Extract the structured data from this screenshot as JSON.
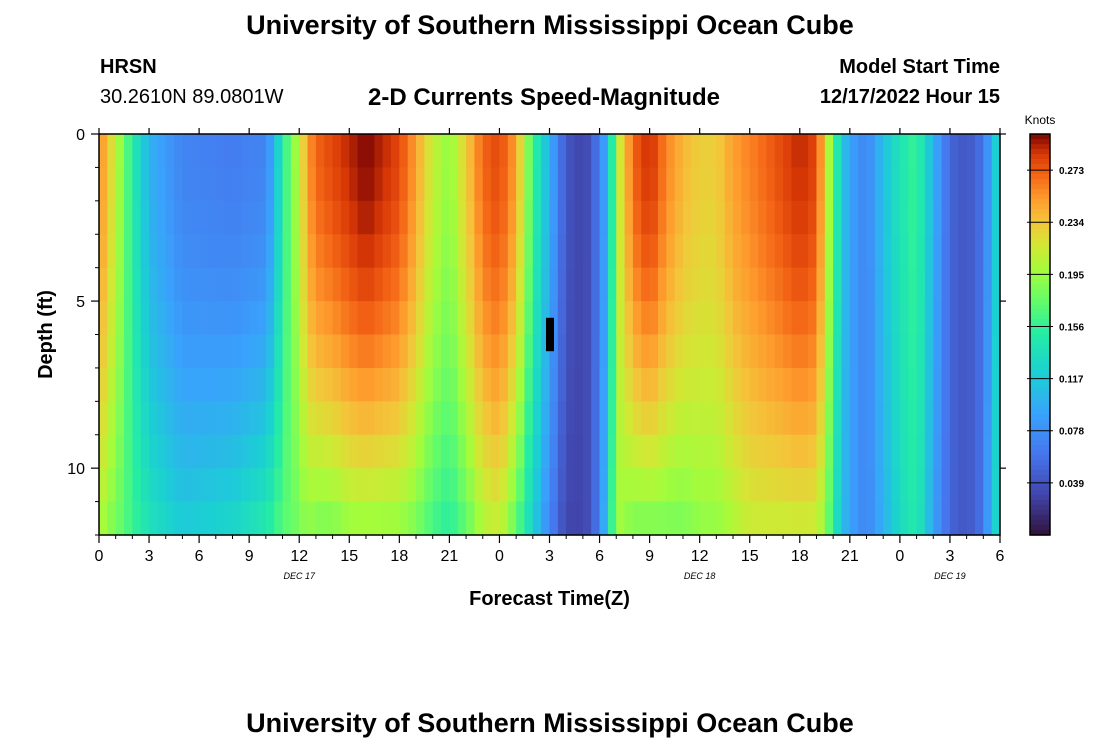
{
  "header": {
    "title": "University of Southern Mississippi Ocean Cube",
    "station": "HRSN",
    "coordinates": "30.2610N  89.0801W",
    "subtitle": "2-D Currents Speed-Magnitude",
    "model_start_label": "Model Start Time",
    "model_start_value": "12/17/2022 Hour 15"
  },
  "footer": {
    "title": "University of Southern Mississippi Ocean Cube"
  },
  "chart_data": {
    "type": "heatmap",
    "title": "2-D Currents Speed-Magnitude",
    "xlabel": "Forecast Time(Z)",
    "ylabel": "Depth (ft)",
    "x_range_hours": [
      0,
      54
    ],
    "y_range_ft": [
      0,
      12
    ],
    "x_tick_labels": [
      "0",
      "3",
      "6",
      "9",
      "12",
      "15",
      "18",
      "21",
      "0",
      "3",
      "6",
      "9",
      "12",
      "15",
      "18",
      "21",
      "0",
      "3",
      "6"
    ],
    "day_labels": [
      {
        "hour": 12,
        "label": "DEC 17"
      },
      {
        "hour": 36,
        "label": "DEC 18"
      },
      {
        "hour": 51,
        "label": "DEC 19"
      }
    ],
    "y_ticks": [
      0,
      5,
      10
    ],
    "colorbar": {
      "label": "Knots",
      "min": 0.0,
      "max": 0.3,
      "tick_labels": [
        "0.039",
        "0.078",
        "0.117",
        "0.156",
        "0.195",
        "0.234",
        "0.273"
      ],
      "tick_values": [
        0.039,
        0.078,
        0.117,
        0.156,
        0.195,
        0.234,
        0.273
      ]
    },
    "time_profile_hours": [
      0,
      1,
      2,
      3,
      5,
      8,
      10,
      10.5,
      11,
      12,
      12.5,
      13,
      14,
      15,
      16,
      17,
      18,
      19,
      20,
      21,
      22,
      23,
      24,
      25,
      26,
      27,
      28,
      29,
      29.5,
      30,
      30.5,
      31,
      32,
      33,
      34,
      35,
      36,
      37,
      38,
      39,
      40,
      41,
      42,
      43,
      43.5,
      44,
      44.5,
      45,
      46,
      47,
      48,
      49,
      50,
      51,
      52,
      53,
      53.5,
      54
    ],
    "surface_speed_knots": [
      0.26,
      0.21,
      0.15,
      0.1,
      0.07,
      0.065,
      0.07,
      0.1,
      0.15,
      0.21,
      0.25,
      0.27,
      0.28,
      0.29,
      0.3,
      0.29,
      0.28,
      0.25,
      0.21,
      0.19,
      0.23,
      0.27,
      0.28,
      0.25,
      0.16,
      0.1,
      0.04,
      0.03,
      0.04,
      0.07,
      0.1,
      0.2,
      0.27,
      0.29,
      0.26,
      0.24,
      0.23,
      0.23,
      0.25,
      0.26,
      0.27,
      0.28,
      0.29,
      0.28,
      0.23,
      0.17,
      0.12,
      0.09,
      0.07,
      0.11,
      0.14,
      0.16,
      0.1,
      0.05,
      0.04,
      0.06,
      0.1,
      0.14
    ],
    "bottom_speed_knots": [
      0.2,
      0.18,
      0.16,
      0.14,
      0.12,
      0.13,
      0.15,
      0.16,
      0.17,
      0.18,
      0.19,
      0.18,
      0.18,
      0.19,
      0.19,
      0.19,
      0.19,
      0.18,
      0.16,
      0.15,
      0.17,
      0.2,
      0.21,
      0.17,
      0.12,
      0.07,
      0.03,
      0.03,
      0.04,
      0.07,
      0.12,
      0.2,
      0.18,
      0.18,
      0.18,
      0.18,
      0.19,
      0.19,
      0.2,
      0.21,
      0.21,
      0.21,
      0.21,
      0.21,
      0.19,
      0.15,
      0.11,
      0.09,
      0.07,
      0.1,
      0.13,
      0.15,
      0.09,
      0.05,
      0.04,
      0.06,
      0.11,
      0.14
    ],
    "data_gap": {
      "hour": 27,
      "depth_ft": [
        5.5,
        6.5
      ]
    }
  }
}
